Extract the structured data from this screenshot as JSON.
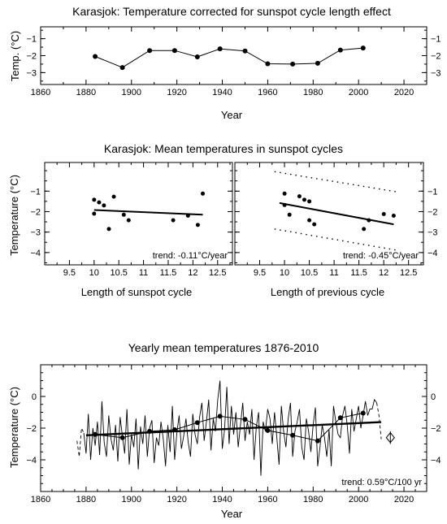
{
  "chart_data": [
    {
      "type": "line",
      "title": "Karasjok: Temperature corrected for sunspot cycle length effect",
      "xlabel": "Year",
      "ylabel": "Temp. (°C)",
      "xlim": [
        1860,
        2030
      ],
      "ylim": [
        -3.7,
        -0.3
      ],
      "xticks": [
        1860,
        1880,
        1900,
        1920,
        1940,
        1960,
        1980,
        2000,
        2020
      ],
      "yticks": [
        -1,
        -2,
        -3
      ],
      "grid": false,
      "series": [
        {
          "x": [
            1884,
            1896,
            1908,
            1919,
            1929,
            1939,
            1950,
            1960,
            1971,
            1982,
            1992,
            2002
          ],
          "y": [
            -2.05,
            -2.7,
            -1.7,
            -1.7,
            -2.07,
            -1.6,
            -1.72,
            -2.48,
            -2.5,
            -2.45,
            -1.67,
            -1.55
          ]
        }
      ]
    },
    {
      "type": "scatter",
      "title": "Karasjok: Mean temperatures in sunspot cycles",
      "xlabel": "Length of sunspot cycle",
      "ylabel": "Temperature (°C)",
      "xlim": [
        9.0,
        12.8
      ],
      "ylim": [
        -4.6,
        0.4
      ],
      "xticks": [
        9.5,
        10,
        10.5,
        11,
        11.5,
        12,
        12.5
      ],
      "yticks": [
        -1,
        -2,
        -3,
        -4
      ],
      "annotation": "trend: -0.11°C/year",
      "points": {
        "x": [
          10.0,
          10.1,
          10.2,
          10.0,
          10.4,
          10.6,
          10.7,
          10.3,
          11.6,
          11.9,
          12.1,
          12.2
        ],
        "y": [
          -1.42,
          -1.55,
          -1.7,
          -2.1,
          -1.27,
          -2.15,
          -2.42,
          -2.85,
          -2.42,
          -2.2,
          -2.65,
          -1.12
        ]
      },
      "trend_line": {
        "x": [
          10.0,
          12.2
        ],
        "y": [
          -1.92,
          -2.15
        ]
      }
    },
    {
      "type": "scatter",
      "xlabel": "Length of previous cycle",
      "xlim": [
        9.0,
        12.8
      ],
      "ylim": [
        -4.6,
        0.4
      ],
      "xticks": [
        9.5,
        10,
        10.5,
        11,
        11.5,
        12,
        12.5
      ],
      "yticks": [
        -1,
        -2,
        -3,
        -4
      ],
      "annotation": "trend: -0.45°C/year",
      "points": {
        "x": [
          10.0,
          10.0,
          10.1,
          10.3,
          10.4,
          10.5,
          10.5,
          10.6,
          11.6,
          11.7,
          12.0,
          12.2
        ],
        "y": [
          -1.12,
          -1.68,
          -2.15,
          -1.25,
          -1.42,
          -1.5,
          -2.42,
          -2.62,
          -2.85,
          -2.42,
          -2.12,
          -2.2
        ]
      },
      "trend_line": {
        "x": [
          9.9,
          12.2
        ],
        "y": [
          -1.58,
          -2.62
        ]
      },
      "confidence_bounds": {
        "upper": {
          "x": [
            9.8,
            12.3
          ],
          "y": [
            -0.05,
            -1.05
          ]
        },
        "lower": {
          "x": [
            9.8,
            12.3
          ],
          "y": [
            -2.85,
            -3.9
          ]
        }
      }
    },
    {
      "type": "line",
      "title": "Yearly mean temperatures 1876-2010",
      "xlabel": "Year",
      "ylabel": "Temperature (°C)",
      "xlim": [
        1860,
        2030
      ],
      "ylim": [
        -6.0,
        2.0
      ],
      "xticks": [
        1860,
        1880,
        1900,
        1920,
        1940,
        1960,
        1980,
        2000,
        2020
      ],
      "yticks": [
        0,
        -2,
        -4
      ],
      "annotation": "trend: 0.59°C/100 yr",
      "series": [
        {
          "x": [
            1879,
            1880,
            1881,
            1882,
            1883,
            1884,
            1885,
            1886,
            1887,
            1888,
            1889,
            1890,
            1891,
            1892,
            1893,
            1894,
            1895,
            1896,
            1897,
            1898,
            1899,
            1900,
            1901,
            1902,
            1903,
            1904,
            1905,
            1906,
            1907,
            1908,
            1909,
            1910,
            1911,
            1912,
            1913,
            1914,
            1915,
            1916,
            1917,
            1918,
            1919,
            1920,
            1921,
            1922,
            1923,
            1924,
            1925,
            1926,
            1927,
            1928,
            1929,
            1930,
            1931,
            1932,
            1933,
            1934,
            1935,
            1936,
            1937,
            1938,
            1939,
            1940,
            1941,
            1942,
            1943,
            1944,
            1945,
            1946,
            1947,
            1948,
            1949,
            1950,
            1951,
            1952,
            1953,
            1954,
            1955,
            1956,
            1957,
            1958,
            1959,
            1960,
            1961,
            1962,
            1963,
            1964,
            1965,
            1966,
            1967,
            1968,
            1969,
            1970,
            1971,
            1972,
            1973,
            1974,
            1975,
            1976,
            1977,
            1978,
            1979,
            1980,
            1981,
            1982,
            1983,
            1984,
            1985,
            1986,
            1987,
            1988,
            1989,
            1990,
            1991,
            1992,
            1993,
            1994,
            1995,
            1996,
            1997,
            1998,
            1999,
            2000,
            2001,
            2002,
            2003,
            2004,
            2005,
            2006,
            2007,
            2008
          ],
          "y": [
            -2.3,
            -3.6,
            -1.1,
            -4.0,
            -2.0,
            -3.1,
            -1.6,
            -3.7,
            -0.3,
            -2.9,
            -3.8,
            -1.2,
            -2.7,
            -3.4,
            -1.8,
            -4.1,
            -1.3,
            -2.5,
            -3.6,
            -0.8,
            -4.3,
            -2.4,
            -3.2,
            -1.4,
            -4.6,
            -1.9,
            -3.0,
            -1.2,
            -3.8,
            -2.0,
            -1.5,
            -4.2,
            -2.6,
            -3.1,
            -1.6,
            -2.7,
            -4.4,
            -1.8,
            -3.5,
            -0.6,
            -4.0,
            -2.3,
            -1.2,
            -3.3,
            -2.5,
            -1.4,
            -2.9,
            -3.8,
            -1.1,
            -2.4,
            -3.0,
            -1.3,
            -0.4,
            -2.8,
            -1.6,
            -0.2,
            -3.4,
            -1.4,
            -2.2,
            -0.2,
            1.0,
            -3.3,
            -2.1,
            0.6,
            -3.0,
            -0.6,
            -2.4,
            -1.0,
            -3.2,
            -1.8,
            -0.4,
            -2.8,
            -1.6,
            -2.4,
            -0.8,
            -4.0,
            -1.9,
            -1.0,
            -5.0,
            -1.6,
            -2.2,
            -0.8,
            -1.4,
            -3.0,
            -1.0,
            -2.6,
            -4.3,
            -0.6,
            -2.2,
            -3.2,
            -1.4,
            -0.4,
            -3.8,
            -2.2,
            -1.6,
            -0.8,
            -3.2,
            -4.0,
            -1.4,
            -2.2,
            -3.5,
            -1.8,
            -0.7,
            -4.4,
            -3.2,
            -1.8,
            -2.6,
            -3.8,
            -2.1,
            -4.4,
            -0.6,
            -1.6,
            -2.4,
            -2.6,
            -1.2,
            -0.6,
            -1.8,
            -3.6,
            -0.8,
            -2.2,
            -1.4,
            -0.6,
            -2.0,
            -1.2,
            -0.3,
            -1.2,
            -0.8,
            -0.8,
            -0.2,
            -0.4
          ]
        },
        {
          "x": [
            1876,
            1877,
            1878,
            1879
          ],
          "y": [
            -2.8,
            -3.8,
            -2.0,
            -2.3
          ]
        },
        {
          "x": [
            2008,
            2009,
            2010
          ],
          "y": [
            -0.4,
            -1.2,
            -2.7
          ]
        },
        {
          "x": [
            1884,
            1896,
            1908,
            1919,
            1929,
            1939,
            1950,
            1960,
            1971,
            1982,
            1992,
            2002
          ],
          "y": [
            -2.4,
            -2.6,
            -2.2,
            -2.1,
            -1.65,
            -1.25,
            -1.45,
            -2.15,
            -2.45,
            -2.8,
            -1.35,
            -1.05
          ]
        }
      ],
      "trend_line": {
        "x": [
          1880,
          2010
        ],
        "y": [
          -2.45,
          -1.62
        ]
      },
      "error_marker": {
        "x": 2014,
        "y": -2.6,
        "err": 0.4
      }
    }
  ]
}
